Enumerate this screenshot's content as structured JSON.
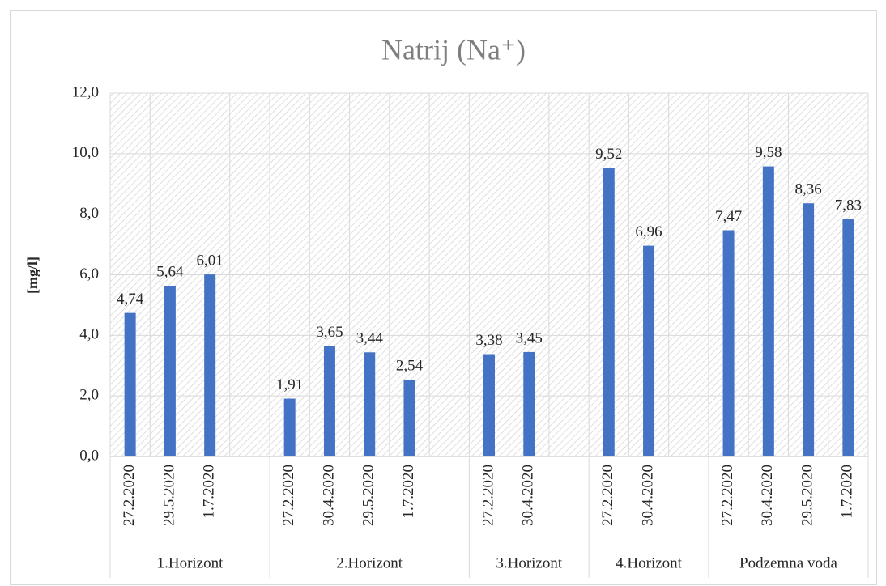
{
  "chart_data": {
    "type": "grouped-bar",
    "title": "Natrij (Na⁺)",
    "y_label": "[mg/l]",
    "color": "#4472c4",
    "grid": true,
    "ylim": [
      0,
      12
    ],
    "yticks": [
      {
        "value": 0,
        "label": "0,0"
      },
      {
        "value": 2,
        "label": "2,0"
      },
      {
        "value": 4,
        "label": "4,0"
      },
      {
        "value": 6,
        "label": "6,0"
      },
      {
        "value": 8,
        "label": "8,0"
      },
      {
        "value": 10,
        "label": "10,0"
      },
      {
        "value": 12,
        "label": "12,0"
      }
    ],
    "groups": [
      {
        "name": "1.Horizont",
        "categories": [
          "27.2.2020",
          "29.5.2020",
          "1.7.2020",
          null
        ],
        "values": [
          4.74,
          5.64,
          6.01,
          null
        ],
        "value_labels": [
          "4,74",
          "5,64",
          "6,01",
          null
        ]
      },
      {
        "name": "2.Horizont",
        "categories": [
          "27.2.2020",
          "30.4.2020",
          "29.5.2020",
          "1.7.2020",
          null
        ],
        "values": [
          1.91,
          3.65,
          3.44,
          2.54,
          null
        ],
        "value_labels": [
          "1,91",
          "3,65",
          "3,44",
          "2,54",
          null
        ]
      },
      {
        "name": "3.Horizont",
        "categories": [
          "27.2.2020",
          "30.4.2020",
          null
        ],
        "values": [
          3.38,
          3.45,
          null
        ],
        "value_labels": [
          "3,38",
          "3,45",
          null
        ]
      },
      {
        "name": "4.Horizont",
        "categories": [
          "27.2.2020",
          "30.4.2020",
          null
        ],
        "values": [
          9.52,
          6.96,
          null
        ],
        "value_labels": [
          "9,52",
          "6,96",
          null
        ]
      },
      {
        "name": "Podzemna voda",
        "categories": [
          "27.2.2020",
          "30.4.2020",
          "29.5.2020",
          "1.7.2020"
        ],
        "values": [
          7.47,
          9.58,
          8.36,
          7.83
        ],
        "value_labels": [
          "7,47",
          "9,58",
          "8,36",
          "7,83"
        ]
      }
    ]
  }
}
